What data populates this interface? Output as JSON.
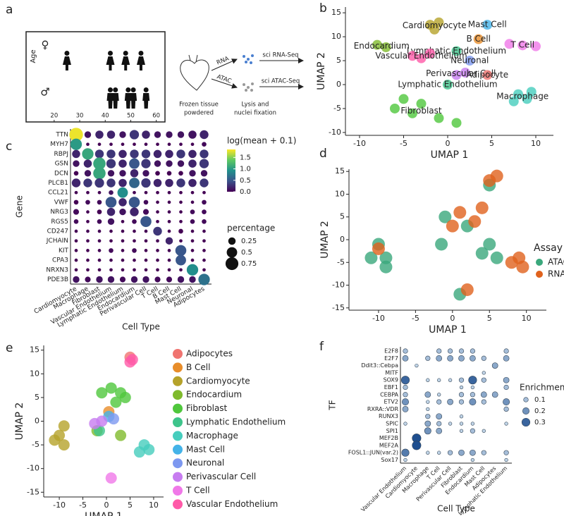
{
  "panel_labels": [
    "a",
    "b",
    "c",
    "d",
    "e",
    "f"
  ],
  "chart_data": [
    {
      "type": "timeline",
      "ylabel": "Age",
      "female_symbol": "♀",
      "male_symbol": "♂",
      "xlim": [
        9,
        63.4
      ],
      "xticks": [
        20,
        30,
        40,
        50,
        60
      ],
      "female_ages": [
        25,
        42,
        48,
        54
      ],
      "male_ages": [
        42,
        44,
        49,
        51,
        56
      ],
      "rna": "RNA",
      "atac": "ATAC",
      "rna_assay": "sci RNA-Seq",
      "atac_assay": "sci ATAC-Seq",
      "tissue": [
        "Frozen tissue",
        "powdered"
      ],
      "lysis": [
        "Lysis and",
        "nuclei fixation"
      ]
    },
    {
      "type": "scatter",
      "xlabel": "UMAP 1",
      "ylabel": "UMAP 2",
      "cluster_labels": true,
      "xlim": [
        -11.6,
        12
      ],
      "xticks": [
        -10,
        -5,
        0,
        5,
        10
      ],
      "ylim": [
        -10.6,
        16.2
      ],
      "yticks": [
        -10,
        -5,
        0,
        5,
        10,
        15
      ],
      "series": [
        {
          "name": "Cardiomyocyte",
          "color": "#b5a22a",
          "x": [
            -2,
            -1,
            -1.5
          ],
          "y": [
            12.5,
            13,
            11.5
          ]
        },
        {
          "name": "Mast Cell",
          "color": "#44b3e8",
          "x": [
            4.5
          ],
          "y": [
            12.5
          ]
        },
        {
          "name": "B Cell",
          "color": "#e88d2a",
          "x": [
            3.5
          ],
          "y": [
            9.5
          ]
        },
        {
          "name": "Endocardium",
          "color": "#7fba2c",
          "x": [
            -8,
            -7
          ],
          "y": [
            8.3,
            7.8
          ]
        },
        {
          "name": "T Cell",
          "color": "#f078e8",
          "x": [
            7,
            8.5,
            10
          ],
          "y": [
            8.5,
            8.2,
            8
          ]
        },
        {
          "name": "Lymphatic Endothelium",
          "color": "#3ec48b",
          "x": [
            1
          ],
          "y": [
            7
          ]
        },
        {
          "name": "Vascular Endothelium",
          "color": "#ff5aa8",
          "x": [
            -4,
            -3,
            -2
          ],
          "y": [
            6,
            5.5,
            6.5
          ]
        },
        {
          "name": "Neuronal",
          "color": "#7d98f0",
          "x": [
            2.5
          ],
          "y": [
            5
          ]
        },
        {
          "name": "Perivascular Cell",
          "color": "#c77cf0",
          "x": [
            1,
            2
          ],
          "y": [
            2,
            2.5
          ]
        },
        {
          "name": "Adipocyte",
          "color": "#f07470",
          "x": [
            4.5
          ],
          "y": [
            2
          ]
        },
        {
          "name": "Lymphatic Endothelium",
          "color": "#3ec48b",
          "x": [
            0
          ],
          "y": [
            0
          ]
        },
        {
          "name": "Macrophage",
          "color": "#46cdbd",
          "x": [
            8,
            9,
            7.5,
            9.5
          ],
          "y": [
            -2,
            -3,
            -3.5,
            -1.5
          ]
        },
        {
          "name": "Fibroblast",
          "color": "#4fc73c",
          "x": [
            -5,
            -3,
            -6,
            -1,
            1,
            -4
          ],
          "y": [
            -3,
            -4,
            -5,
            -7,
            -8,
            -6
          ]
        }
      ]
    },
    {
      "type": "dot",
      "xlabel": "Cell Type",
      "ylabel": "Gene",
      "colormap": "viridis",
      "categories": [
        "Cardiomyocyte",
        "Macrophage",
        "Fibroblast",
        "Vascular Endothelium",
        "Lymphatic Endothelium",
        "Endocardium",
        "Perivascular Cell",
        "T Cell",
        "B Cell",
        "Mast Cell",
        "Neuronal",
        "Adipocytes"
      ],
      "rows": [
        "TTN",
        "MYH7",
        "RBPJ",
        "GSN",
        "DCN",
        "PLCB1",
        "CCL21",
        "VWF",
        "NRG3",
        "RGS5",
        "CD247",
        "JCHAIN",
        "KIT",
        "CPA3",
        "NRXN3",
        "PDE3B"
      ],
      "color_values": [
        [
          1.8,
          0.1,
          0.2,
          0.2,
          0.1,
          0.3,
          0.2,
          0.1,
          0.1,
          0.1,
          0.1,
          0.2
        ],
        [
          1.0,
          0,
          0,
          0,
          0,
          0,
          0,
          0,
          0,
          0,
          0,
          0.05
        ],
        [
          0.2,
          1.1,
          0.3,
          0.3,
          0.2,
          0.3,
          0.3,
          0.2,
          0.2,
          0.3,
          0.2,
          0.3
        ],
        [
          0.1,
          0.2,
          1.1,
          0.3,
          0.2,
          0.5,
          0.3,
          0.1,
          0.1,
          0.1,
          0.2,
          0.3
        ],
        [
          0,
          0.1,
          1.1,
          0.1,
          0.1,
          0.2,
          0.1,
          0,
          0,
          0,
          0.1,
          0.1
        ],
        [
          0.2,
          0.3,
          0.3,
          0.3,
          0.2,
          0.6,
          0.3,
          0.2,
          0.2,
          0.3,
          0.2,
          0.3
        ],
        [
          0,
          0,
          0,
          0.1,
          0.9,
          0,
          0,
          0,
          0,
          0,
          0,
          0
        ],
        [
          0,
          0.05,
          0.05,
          0.5,
          0.2,
          0.5,
          0.05,
          0,
          0,
          0,
          0,
          0.05
        ],
        [
          0.05,
          0,
          0,
          0.2,
          0.1,
          0.2,
          0.05,
          0,
          0,
          0,
          0.05,
          0.05
        ],
        [
          0.05,
          0,
          0.05,
          0.1,
          0,
          0.05,
          0.5,
          0,
          0,
          0,
          0.05,
          0.05
        ],
        [
          0,
          0,
          0,
          0,
          0,
          0,
          0,
          0.3,
          0,
          0,
          0,
          0
        ],
        [
          0,
          0,
          0,
          0,
          0,
          0,
          0,
          0,
          0.2,
          0,
          0,
          0
        ],
        [
          0,
          0,
          0,
          0.05,
          0,
          0.05,
          0,
          0,
          0,
          0.5,
          0,
          0
        ],
        [
          0,
          0,
          0,
          0,
          0,
          0,
          0,
          0,
          0,
          0.5,
          0,
          0
        ],
        [
          0,
          0,
          0,
          0,
          0,
          0,
          0,
          0,
          0,
          0,
          0.9,
          0
        ],
        [
          0.1,
          0.05,
          0.1,
          0.1,
          0.05,
          0.1,
          0.1,
          0.05,
          0.05,
          0.1,
          0.1,
          0.7
        ]
      ],
      "size_values": [
        [
          0.85,
          0.2,
          0.3,
          0.3,
          0.2,
          0.4,
          0.3,
          0.2,
          0.2,
          0.2,
          0.3,
          0.35
        ],
        [
          0.6,
          0.05,
          0.05,
          0.05,
          0.05,
          0.05,
          0.05,
          0.05,
          0.05,
          0.05,
          0.05,
          0.1
        ],
        [
          0.3,
          0.6,
          0.35,
          0.35,
          0.3,
          0.35,
          0.35,
          0.3,
          0.3,
          0.35,
          0.3,
          0.35
        ],
        [
          0.2,
          0.3,
          0.7,
          0.4,
          0.3,
          0.5,
          0.4,
          0.2,
          0.2,
          0.2,
          0.3,
          0.4
        ],
        [
          0.1,
          0.2,
          0.7,
          0.2,
          0.2,
          0.3,
          0.2,
          0.1,
          0.1,
          0.1,
          0.2,
          0.2
        ],
        [
          0.35,
          0.35,
          0.4,
          0.35,
          0.3,
          0.5,
          0.4,
          0.3,
          0.3,
          0.35,
          0.3,
          0.35
        ],
        [
          0.05,
          0.05,
          0.05,
          0.1,
          0.5,
          0.05,
          0.05,
          0.05,
          0.05,
          0.05,
          0.05,
          0.05
        ],
        [
          0.1,
          0.1,
          0.1,
          0.55,
          0.3,
          0.55,
          0.1,
          0.05,
          0.05,
          0.05,
          0.05,
          0.1
        ],
        [
          0.15,
          0.05,
          0.1,
          0.3,
          0.2,
          0.35,
          0.15,
          0.05,
          0.05,
          0.05,
          0.1,
          0.1
        ],
        [
          0.1,
          0.05,
          0.1,
          0.2,
          0.05,
          0.1,
          0.55,
          0.05,
          0.05,
          0.05,
          0.1,
          0.1
        ],
        [
          0.05,
          0.05,
          0.05,
          0.05,
          0.05,
          0.05,
          0.05,
          0.35,
          0.05,
          0.1,
          0.05,
          0.05
        ],
        [
          0.05,
          0.05,
          0.05,
          0.05,
          0.05,
          0.05,
          0.05,
          0.05,
          0.25,
          0.05,
          0.05,
          0.05
        ],
        [
          0.05,
          0.05,
          0.05,
          0.1,
          0.05,
          0.1,
          0.05,
          0.05,
          0.05,
          0.55,
          0.05,
          0.05
        ],
        [
          0.05,
          0.05,
          0.05,
          0.05,
          0.05,
          0.05,
          0.05,
          0.05,
          0.05,
          0.5,
          0.05,
          0.05
        ],
        [
          0.05,
          0.05,
          0.05,
          0.05,
          0.05,
          0.05,
          0.05,
          0.05,
          0.05,
          0.05,
          0.6,
          0.05
        ],
        [
          0.2,
          0.15,
          0.2,
          0.2,
          0.15,
          0.2,
          0.2,
          0.15,
          0.15,
          0.2,
          0.2,
          0.6
        ]
      ],
      "clim": [
        0,
        1.85
      ],
      "color_title": "log(mean + 0.1)",
      "color_ticks": [
        {
          "value": 0,
          "label": "0.0"
        },
        {
          "value": 0.5,
          "label": "0.5"
        },
        {
          "value": 1,
          "label": "1.0"
        },
        {
          "value": 1.5,
          "label": "1.5"
        }
      ],
      "size_title": "percentage",
      "size_ticks": [
        0.25,
        0.5,
        0.75
      ]
    },
    {
      "type": "scatter",
      "xlabel": "UMAP 1",
      "ylabel": "UMAP 2",
      "legend": "right",
      "legend_title": "Assay",
      "xlim": [
        -14,
        12.7
      ],
      "xticks": [
        -10,
        -5,
        0,
        5,
        10
      ],
      "ylim": [
        -15.5,
        15.5
      ],
      "yticks": [
        -15,
        -10,
        -5,
        0,
        5,
        10,
        15
      ],
      "series": [
        {
          "name": "ATAC",
          "color": "#3aa87c",
          "x": [
            -10,
            -9,
            -11,
            -9,
            2,
            -1,
            4,
            6,
            5,
            1,
            -1.5,
            5
          ],
          "y": [
            -1,
            -4,
            -4,
            -6,
            3,
            5,
            -3,
            -4,
            -1,
            -12,
            -1,
            12
          ]
        },
        {
          "name": "RNA",
          "color": "#e0621d",
          "x": [
            1,
            4,
            0,
            5,
            6,
            9,
            9.5,
            8,
            2,
            -10,
            3
          ],
          "y": [
            6,
            7,
            3,
            13,
            14,
            -4,
            -6,
            -5,
            -11,
            -2,
            4
          ]
        }
      ]
    },
    {
      "type": "scatter",
      "xlabel": "UMAP 1",
      "ylabel": "UMAP 2",
      "legend": "right",
      "xlim": [
        -13.3,
        12.1
      ],
      "xticks": [
        -10,
        -5,
        0,
        5,
        10
      ],
      "ylim": [
        -16,
        16
      ],
      "yticks": [
        -15,
        -10,
        -5,
        0,
        5,
        10,
        15
      ],
      "series": [
        {
          "name": "Adipocytes",
          "color": "#f07470",
          "x": [
            5
          ],
          "y": [
            13.5
          ]
        },
        {
          "name": "B Cell",
          "color": "#e88d2a",
          "x": [
            0.5
          ],
          "y": [
            2
          ]
        },
        {
          "name": "Cardiomyocyte",
          "color": "#b5a22a",
          "x": [
            -10,
            -9,
            -11,
            -9
          ],
          "y": [
            -3,
            -1,
            -4,
            -5
          ]
        },
        {
          "name": "Endocardium",
          "color": "#7fba2c",
          "x": [
            -2,
            3
          ],
          "y": [
            -2,
            -3
          ]
        },
        {
          "name": "Fibroblast",
          "color": "#4fc73c",
          "x": [
            1,
            3,
            -1,
            2,
            4
          ],
          "y": [
            7,
            6,
            6,
            4,
            5
          ]
        },
        {
          "name": "Lymphatic Endothelium",
          "color": "#3ec48b",
          "x": [
            -1.5
          ],
          "y": [
            -2
          ]
        },
        {
          "name": "Macrophage",
          "color": "#46cdbd",
          "x": [
            8,
            9,
            7
          ],
          "y": [
            -5,
            -6,
            -6.5
          ]
        },
        {
          "name": "Mast Cell",
          "color": "#44b3e8",
          "x": [
            0.5
          ],
          "y": [
            1
          ]
        },
        {
          "name": "Neuronal",
          "color": "#7d98f0",
          "x": [
            1.5
          ],
          "y": [
            0.5
          ]
        },
        {
          "name": "Perivascular Cell",
          "color": "#c77cf0",
          "x": [
            -1,
            -2.5
          ],
          "y": [
            0,
            -0.5
          ]
        },
        {
          "name": "T Cell",
          "color": "#f078e8",
          "x": [
            1
          ],
          "y": [
            -12
          ]
        },
        {
          "name": "Vascular Endothelium",
          "color": "#ff5aa8",
          "x": [
            5,
            5.5
          ],
          "y": [
            12.5,
            13
          ]
        }
      ]
    },
    {
      "type": "dot",
      "xlabel": "Cell Type",
      "ylabel": "TF",
      "colormap": "blues",
      "categories": [
        "Vascular Endothelium",
        "Cardiomyocyte",
        "Macrophage",
        "T Cell",
        "Perivascular Cell",
        "Fibroblast",
        "Endocardium",
        "Mast Cell",
        "Adipocytes",
        "Lymphatic Endothelium"
      ],
      "rows": [
        "E2F8",
        "E2F7",
        "Ddit3::Cebpa",
        "MITF",
        "SOX9",
        "EBF1",
        "CEBPA",
        "ETV2",
        "RXRA::VDR",
        "RUNX3",
        "SPIC",
        "SPI1",
        "MEF2B",
        "MEF2A",
        "FOSL1::JUN(var.2)",
        "Sox17"
      ],
      "values": [
        [
          0.1,
          null,
          null,
          0.1,
          0.1,
          0.1,
          0.1,
          null,
          null,
          0.1
        ],
        [
          0.15,
          null,
          0.1,
          0.15,
          0.15,
          0.15,
          0.15,
          0.1,
          null,
          0.15
        ],
        [
          null,
          0.05,
          null,
          null,
          null,
          null,
          null,
          null,
          0.15,
          null
        ],
        [
          null,
          null,
          null,
          null,
          null,
          null,
          null,
          0.05,
          null,
          null
        ],
        [
          0.3,
          null,
          0.05,
          0.05,
          0.05,
          0.1,
          0.3,
          0.1,
          null,
          0.15
        ],
        [
          0.1,
          null,
          null,
          null,
          null,
          0.05,
          0.05,
          null,
          null,
          0.1
        ],
        [
          0.1,
          null,
          0.15,
          0.05,
          null,
          0.1,
          0.1,
          0.15,
          0.15,
          null
        ],
        [
          0.2,
          null,
          0.05,
          0.1,
          0.15,
          0.1,
          0.2,
          0.1,
          null,
          0.2
        ],
        [
          0.15,
          null,
          0.05,
          null,
          null,
          null,
          null,
          null,
          null,
          0.1
        ],
        [
          null,
          null,
          0.1,
          0.15,
          null,
          0.05,
          null,
          null,
          null,
          null
        ],
        [
          0.05,
          null,
          0.15,
          0.1,
          0.05,
          0.05,
          0.05,
          null,
          null,
          0.05
        ],
        [
          null,
          null,
          0.2,
          0.15,
          null,
          0.05,
          0.1,
          0.05,
          null,
          null
        ],
        [
          null,
          0.35,
          null,
          null,
          null,
          null,
          null,
          null,
          null,
          null
        ],
        [
          null,
          0.35,
          null,
          null,
          null,
          null,
          null,
          null,
          null,
          null
        ],
        [
          0.25,
          null,
          0.05,
          0.05,
          0.1,
          0.15,
          0.15,
          0.1,
          null,
          0.1
        ],
        [
          0.05,
          null,
          null,
          null,
          null,
          null,
          0.05,
          null,
          null,
          0.05
        ]
      ],
      "clim": [
        0,
        0.35
      ],
      "legend_title": "Enrichment",
      "legend_ticks": [
        0.1,
        0.2,
        0.3
      ]
    }
  ]
}
